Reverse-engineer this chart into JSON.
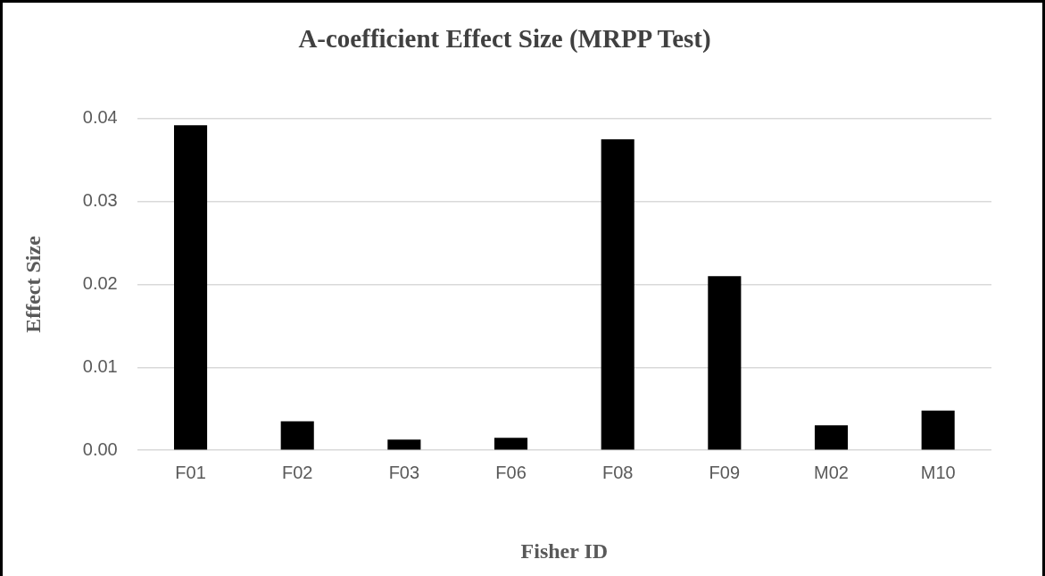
{
  "chart_data": {
    "type": "bar",
    "title": "A-coefficient Effect Size (MRPP Test)",
    "xlabel": "Fisher ID",
    "ylabel": "Effect Size",
    "categories": [
      "F01",
      "F02",
      "F03",
      "F06",
      "F08",
      "F09",
      "M02",
      "M10"
    ],
    "values": [
      0.0392,
      0.0035,
      0.0013,
      0.0015,
      0.0375,
      0.021,
      0.003,
      0.0048
    ],
    "color": "#000000",
    "ylim": [
      0,
      0.04
    ],
    "yticks": [
      {
        "value": 0,
        "label": "0.00"
      },
      {
        "value": 0.01,
        "label": "0.01"
      },
      {
        "value": 0.02,
        "label": "0.02"
      },
      {
        "value": 0.03,
        "label": "0.03"
      },
      {
        "value": 0.04,
        "label": "0.04"
      }
    ],
    "grid": "y",
    "legend": false
  }
}
